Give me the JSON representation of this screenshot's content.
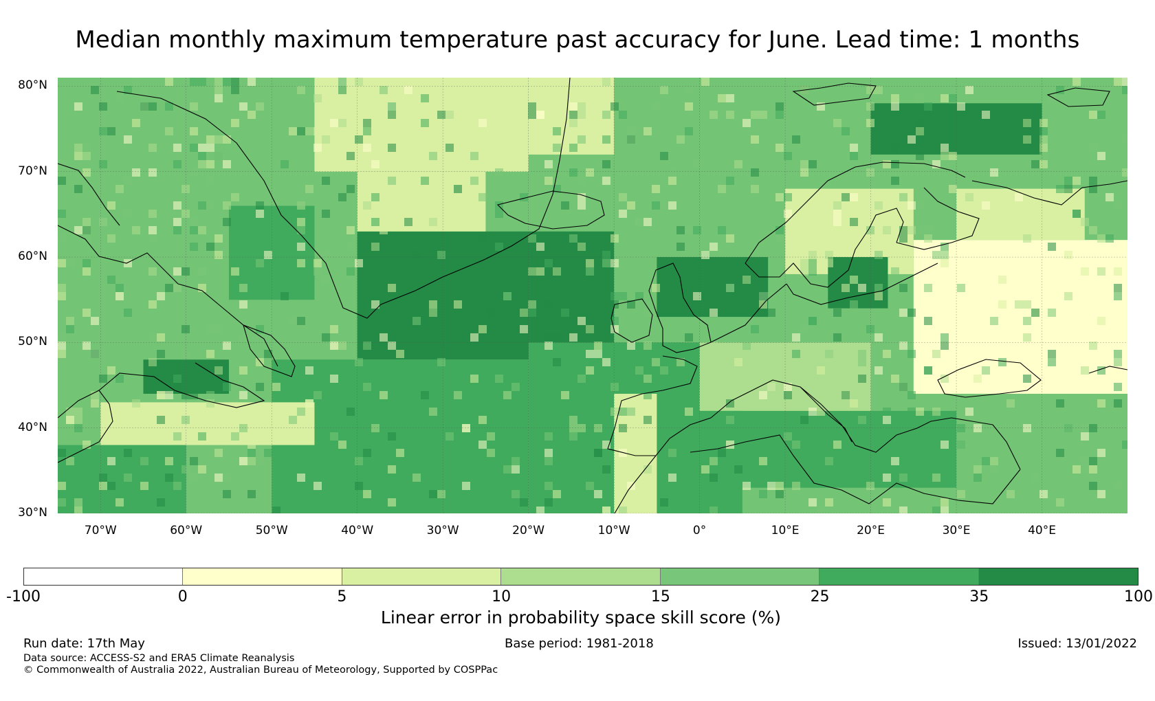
{
  "title": "Median monthly maximum temperature past accuracy for June. Lead time: 1 months",
  "map": {
    "lat_labels": [
      "80°N",
      "70°N",
      "60°N",
      "50°N",
      "40°N",
      "30°N"
    ],
    "lon_labels": [
      "70°W",
      "60°W",
      "50°W",
      "40°W",
      "30°W",
      "20°W",
      "10°W",
      "0°",
      "10°E",
      "20°E",
      "30°E",
      "40°E"
    ],
    "lon_range": [
      -75,
      50
    ],
    "lat_range": [
      30,
      81
    ],
    "gridlines": true,
    "coastlines": true,
    "field_colors": {
      "sea_dominant": "#74c476",
      "central_atlantic": "#41ab5d",
      "north_atlantic_core": "#238b45",
      "greenland": "#d9f0a3",
      "eastern_europe": "#ffffcc",
      "mediterranean": "#41ab5d"
    }
  },
  "colorbar": {
    "label": "Linear error in probability space skill score (%)",
    "ticks": [
      "-100",
      "0",
      "5",
      "10",
      "15",
      "25",
      "35",
      "100"
    ],
    "bins": [
      {
        "from": -100,
        "to": 0,
        "color": "#ffffff"
      },
      {
        "from": 0,
        "to": 5,
        "color": "#ffffcc"
      },
      {
        "from": 5,
        "to": 10,
        "color": "#d9f0a3"
      },
      {
        "from": 10,
        "to": 15,
        "color": "#addd8e"
      },
      {
        "from": 15,
        "to": 25,
        "color": "#78c679"
      },
      {
        "from": 25,
        "to": 35,
        "color": "#41ab5d"
      },
      {
        "from": 35,
        "to": 100,
        "color": "#238b45"
      }
    ]
  },
  "footer": {
    "run_date": "Run date: 17th May",
    "base_period": "Base period: 1981-2018",
    "issued": "Issued: 13/01/2022",
    "data_source": "Data source: ACCESS-S2 and ERA5 Climate Reanalysis",
    "copyright": "© Commonwealth of Australia 2022, Australian Bureau of Meteorology, Supported by COSPPac"
  }
}
